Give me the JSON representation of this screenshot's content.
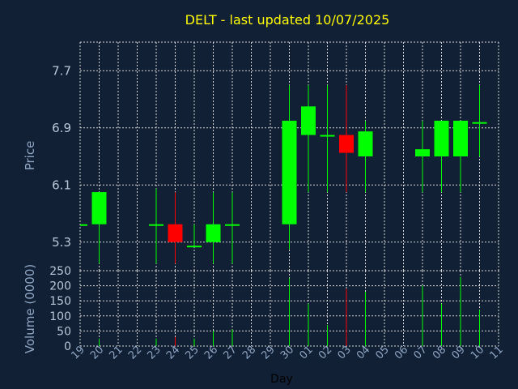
{
  "chart_data": {
    "type": "candlestick",
    "title": "DELT - last updated 10/07/2025",
    "ylabel_price": "Price",
    "ylabel_volume": "Volume (0000)",
    "xlabel": "Day",
    "price_ylim": [
      4.9,
      8.1
    ],
    "price_ticks": [
      "5.3",
      "6.1",
      "6.9",
      "7.7"
    ],
    "volume_ylim": [
      0,
      250
    ],
    "volume_ticks": [
      "0",
      "50",
      "100",
      "150",
      "200",
      "250"
    ],
    "grid": true,
    "x_ticks": [
      "19",
      "20",
      "21",
      "22",
      "23",
      "24",
      "25",
      "26",
      "27",
      "28",
      "29",
      "30",
      "01",
      "02",
      "03",
      "04",
      "05",
      "06",
      "07",
      "08",
      "09",
      "10",
      "11"
    ],
    "colors": {
      "up": "#00ff00",
      "down": "#ff0000",
      "background": "#112035",
      "title": "#ffff00",
      "tick": "#b9c8d9",
      "axis_label": "#8fa6c3"
    },
    "candles": [
      {
        "x": "19",
        "open": 5.55,
        "high": 5.55,
        "low": 5.55,
        "close": 5.55,
        "volume": 0
      },
      {
        "x": "20",
        "open": 5.55,
        "high": 6.0,
        "low": 5.0,
        "close": 6.0,
        "volume": 25
      },
      {
        "x": "23",
        "open": 5.55,
        "high": 6.05,
        "low": 5.0,
        "close": 5.55,
        "volume": 25
      },
      {
        "x": "24",
        "open": 5.55,
        "high": 6.0,
        "low": 5.0,
        "close": 5.3,
        "volume": 30
      },
      {
        "x": "25",
        "open": 5.25,
        "high": 5.55,
        "low": 5.25,
        "close": 5.25,
        "volume": 25
      },
      {
        "x": "26",
        "open": 5.3,
        "high": 6.0,
        "low": 5.0,
        "close": 5.55,
        "volume": 50
      },
      {
        "x": "27",
        "open": 5.55,
        "high": 6.0,
        "low": 5.0,
        "close": 5.55,
        "volume": 55
      },
      {
        "x": "30",
        "open": 5.55,
        "high": 7.5,
        "low": 5.2,
        "close": 7.0,
        "volume": 225
      },
      {
        "x": "01",
        "open": 6.8,
        "high": 7.5,
        "low": 6.0,
        "close": 7.2,
        "volume": 140
      },
      {
        "x": "02",
        "open": 6.8,
        "high": 7.5,
        "low": 6.0,
        "close": 6.8,
        "volume": 70
      },
      {
        "x": "03",
        "open": 6.8,
        "high": 7.5,
        "low": 6.0,
        "close": 6.55,
        "volume": 190
      },
      {
        "x": "04",
        "open": 6.5,
        "high": 7.0,
        "low": 6.0,
        "close": 6.85,
        "volume": 180
      },
      {
        "x": "07",
        "open": 6.5,
        "high": 7.0,
        "low": 6.0,
        "close": 6.6,
        "volume": 200
      },
      {
        "x": "08",
        "open": 6.5,
        "high": 7.0,
        "low": 6.0,
        "close": 7.0,
        "volume": 140
      },
      {
        "x": "09",
        "open": 6.5,
        "high": 7.0,
        "low": 6.0,
        "close": 7.0,
        "volume": 230
      },
      {
        "x": "10",
        "open": 6.98,
        "high": 7.5,
        "low": 6.5,
        "close": 6.98,
        "volume": 120
      }
    ]
  }
}
